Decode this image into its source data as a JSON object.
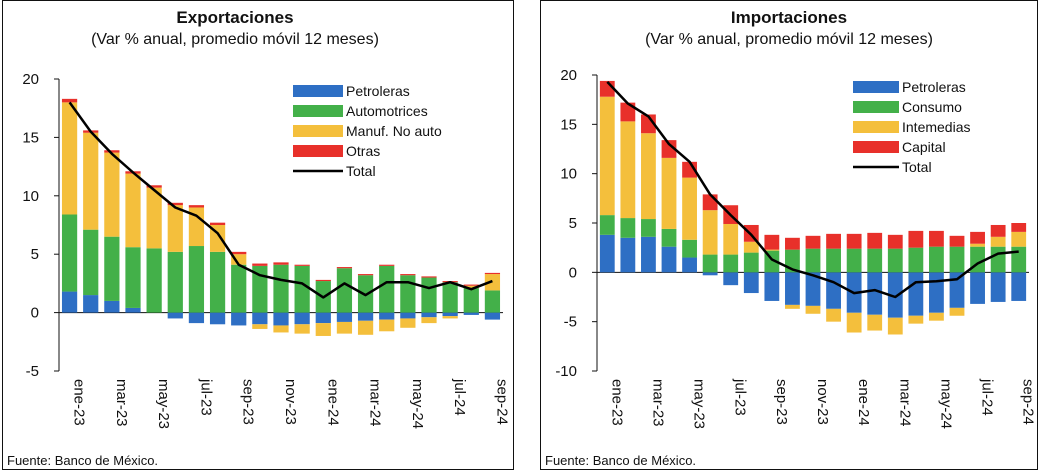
{
  "charts": [
    {
      "title": "Exportaciones",
      "subtitle": "(Var % anual, promedio móvil 12 meses)",
      "source": "Fuente: Banco de México."
    },
    {
      "title": "Importaciones",
      "subtitle": "(Var % anual, promedio móvil 12 meses)",
      "source": "Fuente: Banco de México."
    }
  ],
  "chart_data": [
    {
      "type": "bar",
      "title": "Exportaciones",
      "subtitle": "(Var % anual, promedio móvil 12 meses)",
      "stacked": true,
      "ylim": [
        -5,
        20
      ],
      "yticks": [
        -5,
        0,
        5,
        10,
        15,
        20
      ],
      "categories": [
        "ene-23",
        "feb-23",
        "mar-23",
        "abr-23",
        "may-23",
        "jun-23",
        "jul-23",
        "ago-23",
        "sep-23",
        "oct-23",
        "nov-23",
        "dic-23",
        "ene-24",
        "feb-24",
        "mar-24",
        "abr-24",
        "may-24",
        "jun-24",
        "jul-24",
        "ago-24",
        "sep-24"
      ],
      "xtick_labels": [
        "ene-23",
        "mar-23",
        "may-23",
        "jul-23",
        "sep-23",
        "nov-23",
        "ene-24",
        "mar-24",
        "may-24",
        "jul-24",
        "sep-24"
      ],
      "legend_position": "top-right",
      "series": [
        {
          "name": "Petroleras",
          "color": "#2e6fc4",
          "values": [
            1.8,
            1.5,
            1.0,
            0.4,
            0.0,
            -0.5,
            -0.9,
            -1.0,
            -1.1,
            -1.0,
            -1.1,
            -1.0,
            -0.9,
            -0.8,
            -0.7,
            -0.6,
            -0.5,
            -0.4,
            -0.3,
            -0.2,
            -0.6
          ]
        },
        {
          "name": "Automotrices",
          "color": "#43b049",
          "values": [
            6.6,
            5.6,
            5.5,
            5.2,
            5.5,
            5.2,
            5.7,
            5.2,
            4.1,
            4.0,
            4.1,
            4.0,
            2.7,
            3.8,
            3.2,
            4.0,
            3.2,
            3.0,
            2.6,
            2.1,
            1.9
          ]
        },
        {
          "name": "Manuf. No auto",
          "color": "#f4bf3c",
          "values": [
            9.6,
            8.3,
            7.2,
            6.3,
            5.2,
            4.0,
            3.3,
            2.3,
            0.9,
            -0.4,
            -0.6,
            -0.8,
            -1.1,
            -1.0,
            -1.2,
            -1.0,
            -0.8,
            -0.5,
            -0.2,
            0.2,
            1.4
          ]
        },
        {
          "name": "Otras",
          "color": "#e8302a",
          "values": [
            0.3,
            0.2,
            0.2,
            0.2,
            0.2,
            0.2,
            0.2,
            0.2,
            0.2,
            0.2,
            0.2,
            0.1,
            0.1,
            0.1,
            0.1,
            0.1,
            0.1,
            0.1,
            0.1,
            0.1,
            0.1
          ]
        },
        {
          "name": "Total",
          "color": "#000000",
          "type": "line",
          "values": [
            18.0,
            15.5,
            13.6,
            12.0,
            10.5,
            9.0,
            8.3,
            6.8,
            4.1,
            3.2,
            2.8,
            2.5,
            1.3,
            2.5,
            1.5,
            2.6,
            2.6,
            2.1,
            2.6,
            2.0,
            2.7
          ]
        }
      ]
    },
    {
      "type": "bar",
      "title": "Importaciones",
      "subtitle": "(Var % anual, promedio móvil 12 meses)",
      "stacked": true,
      "ylim": [
        -10,
        20
      ],
      "yticks": [
        -10,
        -5,
        0,
        5,
        10,
        15,
        20
      ],
      "categories": [
        "ene-23",
        "feb-23",
        "mar-23",
        "abr-23",
        "may-23",
        "jun-23",
        "jul-23",
        "ago-23",
        "sep-23",
        "oct-23",
        "nov-23",
        "dic-23",
        "ene-24",
        "feb-24",
        "mar-24",
        "abr-24",
        "may-24",
        "jun-24",
        "jul-24",
        "ago-24",
        "sep-24"
      ],
      "xtick_labels": [
        "ene-23",
        "mar-23",
        "may-23",
        "jul-23",
        "sep-23",
        "nov-23",
        "ene-24",
        "mar-24",
        "may-24",
        "jul-24",
        "sep-24"
      ],
      "legend_position": "top-right",
      "series": [
        {
          "name": "Petroleras",
          "color": "#2e6fc4",
          "values": [
            3.8,
            3.5,
            3.6,
            2.6,
            1.5,
            -0.3,
            -1.3,
            -2.1,
            -2.9,
            -3.3,
            -3.4,
            -3.7,
            -4.1,
            -4.3,
            -4.6,
            -4.4,
            -4.1,
            -3.6,
            -3.2,
            -3.0,
            -2.9
          ]
        },
        {
          "name": "Consumo",
          "color": "#43b049",
          "values": [
            2.0,
            2.0,
            1.8,
            1.8,
            1.8,
            1.8,
            1.8,
            2.0,
            2.2,
            2.3,
            2.4,
            2.4,
            2.4,
            2.4,
            2.4,
            2.5,
            2.6,
            2.6,
            2.6,
            2.6,
            2.6
          ]
        },
        {
          "name": "Intemedias",
          "color": "#f4bf3c",
          "values": [
            12.0,
            9.8,
            8.7,
            7.2,
            6.3,
            4.5,
            3.1,
            1.1,
            0.1,
            -0.4,
            -0.8,
            -1.3,
            -2.0,
            -1.6,
            -1.7,
            -0.8,
            -0.8,
            -0.8,
            0.3,
            1.0,
            1.5
          ]
        },
        {
          "name": "Capital",
          "color": "#e8302a",
          "values": [
            1.6,
            1.9,
            1.9,
            1.8,
            1.6,
            1.6,
            1.9,
            1.7,
            1.5,
            1.2,
            1.3,
            1.5,
            1.5,
            1.6,
            1.4,
            1.7,
            1.6,
            1.1,
            1.2,
            1.2,
            0.9
          ]
        },
        {
          "name": "Total",
          "color": "#000000",
          "type": "line",
          "values": [
            19.3,
            17.1,
            15.8,
            13.0,
            11.2,
            7.9,
            5.8,
            3.8,
            1.3,
            0.3,
            -0.3,
            -1.0,
            -2.1,
            -1.8,
            -2.5,
            -1.0,
            -0.9,
            -0.7,
            0.9,
            1.9,
            2.1
          ]
        }
      ]
    }
  ]
}
